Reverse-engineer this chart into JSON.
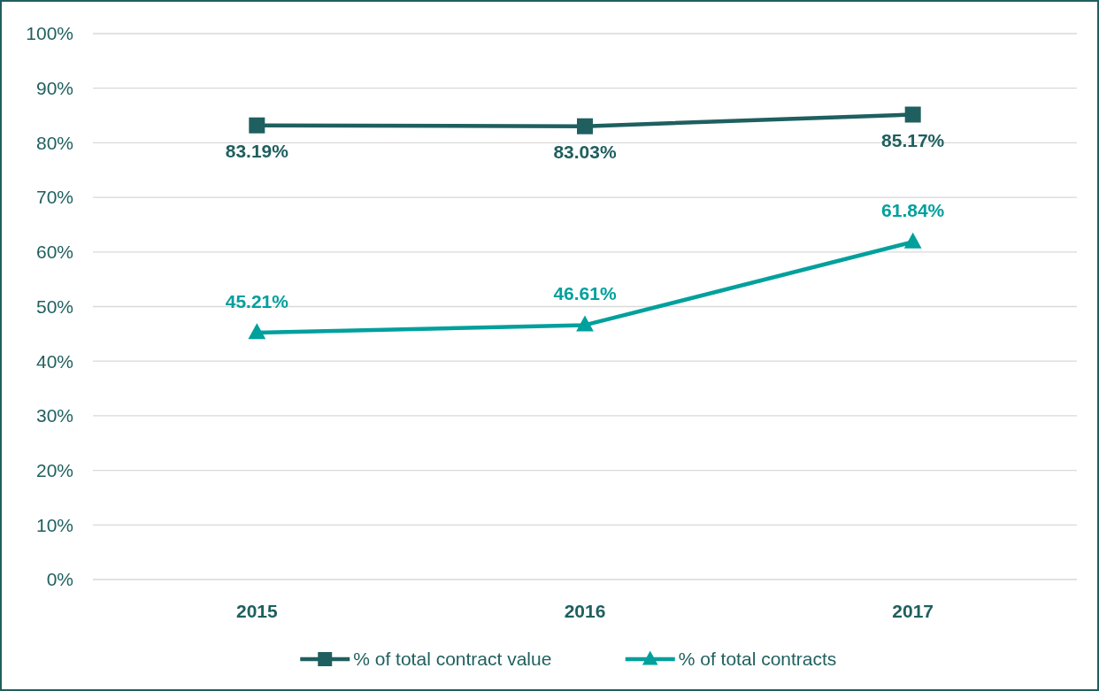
{
  "chart_data": {
    "type": "line",
    "categories": [
      "2015",
      "2016",
      "2017"
    ],
    "series": [
      {
        "name": "% of total contract value",
        "color": "#1f5f5f",
        "marker": "square",
        "values": [
          83.19,
          83.03,
          85.17
        ],
        "value_labels": [
          "83.19%",
          "83.03%",
          "85.17%"
        ]
      },
      {
        "name": "% of total contracts",
        "color": "#00a09d",
        "marker": "triangle",
        "values": [
          45.21,
          46.61,
          61.84
        ],
        "value_labels": [
          "45.21%",
          "46.61%",
          "61.84%"
        ]
      }
    ],
    "ylim": [
      0,
      100
    ],
    "yticks": [
      {
        "value": 0,
        "label": "0%"
      },
      {
        "value": 10,
        "label": "10%"
      },
      {
        "value": 20,
        "label": "20%"
      },
      {
        "value": 30,
        "label": "30%"
      },
      {
        "value": 40,
        "label": "40%"
      },
      {
        "value": 50,
        "label": "50%"
      },
      {
        "value": 60,
        "label": "60%"
      },
      {
        "value": 70,
        "label": "70%"
      },
      {
        "value": 80,
        "label": "80%"
      },
      {
        "value": 90,
        "label": "90%"
      },
      {
        "value": 100,
        "label": "100%"
      }
    ],
    "grid": "y",
    "legend": "bottom",
    "line_style": "solid"
  }
}
